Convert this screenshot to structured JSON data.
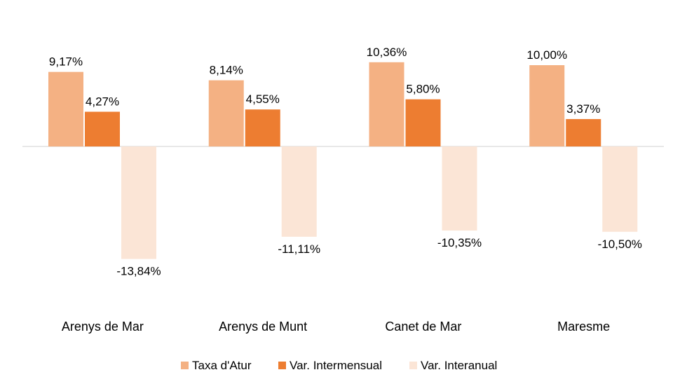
{
  "chart_data": {
    "type": "bar",
    "title": "",
    "xlabel": "",
    "ylabel": "",
    "ylim": [
      -15.5,
      11.5
    ],
    "grid": false,
    "legend_position": "bottom",
    "categories": [
      "Arenys de Mar",
      "Arenys de Munt",
      "Canet de Mar",
      "Maresme"
    ],
    "series": [
      {
        "name": "Taxa d'Atur",
        "color": "#F4B183",
        "values": [
          9.17,
          8.14,
          10.36,
          10.0
        ],
        "labels": [
          "9,17%",
          "8,14%",
          "10,36%",
          "10,00%"
        ]
      },
      {
        "name": "Var. Intermensual",
        "color": "#ED7D31",
        "values": [
          4.27,
          4.55,
          5.8,
          3.37
        ],
        "labels": [
          "4,27%",
          "4,55%",
          "5,80%",
          "3,37%"
        ]
      },
      {
        "name": "Var. Interanual",
        "color": "#FBE5D6",
        "values": [
          -13.84,
          -11.11,
          -10.35,
          -10.5
        ],
        "labels": [
          "-13,84%",
          "-11,11%",
          "-10,35%",
          "-10,50%"
        ]
      }
    ]
  }
}
